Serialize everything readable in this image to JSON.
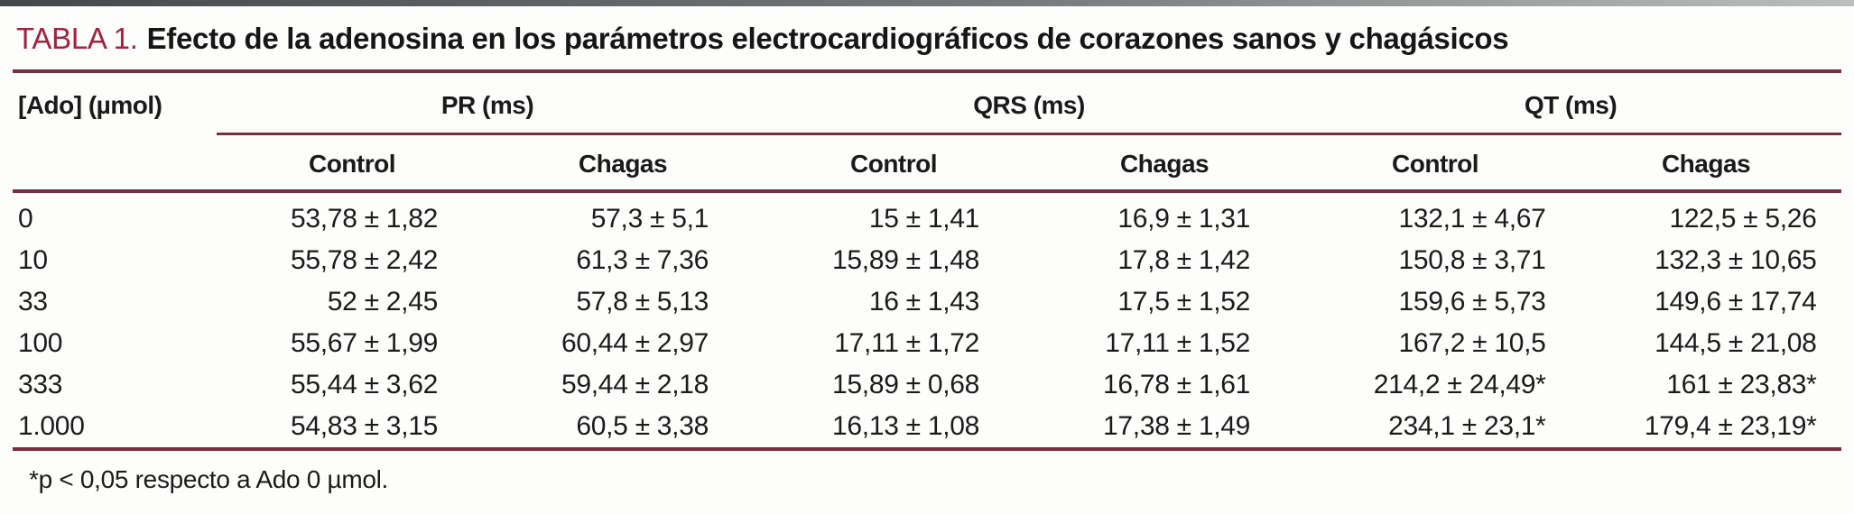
{
  "title": {
    "label": "TABLA 1.",
    "text": "Efecto de la adenosina en los parámetros electrocardiográficos de corazones sanos y chagásicos"
  },
  "table": {
    "row_header": "[Ado] (µmol)",
    "groups": [
      {
        "label": "PR (ms)",
        "columns": [
          "Control",
          "Chagas"
        ]
      },
      {
        "label": "QRS (ms)",
        "columns": [
          "Control",
          "Chagas"
        ]
      },
      {
        "label": "QT (ms)",
        "columns": [
          "Control",
          "Chagas"
        ]
      }
    ],
    "rows": [
      {
        "ado": "0",
        "values": [
          "53,78 ± 1,82",
          "57,3 ± 5,1",
          "15 ± 1,41",
          "16,9 ± 1,31",
          "132,1 ± 4,67",
          "122,5 ± 5,26"
        ]
      },
      {
        "ado": "10",
        "values": [
          "55,78 ± 2,42",
          "61,3 ± 7,36",
          "15,89 ± 1,48",
          "17,8 ± 1,42",
          "150,8 ± 3,71",
          "132,3 ± 10,65"
        ]
      },
      {
        "ado": "33",
        "values": [
          "52 ± 2,45",
          "57,8 ± 5,13",
          "16 ± 1,43",
          "17,5 ± 1,52",
          "159,6 ± 5,73",
          "149,6 ± 17,74"
        ]
      },
      {
        "ado": "100",
        "values": [
          "55,67 ± 1,99",
          "60,44 ± 2,97",
          "17,11 ± 1,72",
          "17,11 ± 1,52",
          "167,2 ± 10,5",
          "144,5 ± 21,08"
        ]
      },
      {
        "ado": "333",
        "values": [
          "55,44 ± 3,62",
          "59,44 ± 2,18",
          "15,89 ± 0,68",
          "16,78 ± 1,61",
          "214,2 ± 24,49*",
          "161 ± 23,83*"
        ]
      },
      {
        "ado": "1.000",
        "values": [
          "54,83 ± 3,15",
          "60,5 ± 3,38",
          "16,13 ± 1,08",
          "17,38 ± 1,49",
          "234,1 ± 23,1*",
          "179,4 ± 23,19*"
        ]
      }
    ],
    "footnote": "*p < 0,05 respecto a Ado 0 µmol."
  },
  "colors": {
    "title_accent": "#a02340",
    "rule": "#772e3e",
    "text": "#1b1b1b"
  }
}
